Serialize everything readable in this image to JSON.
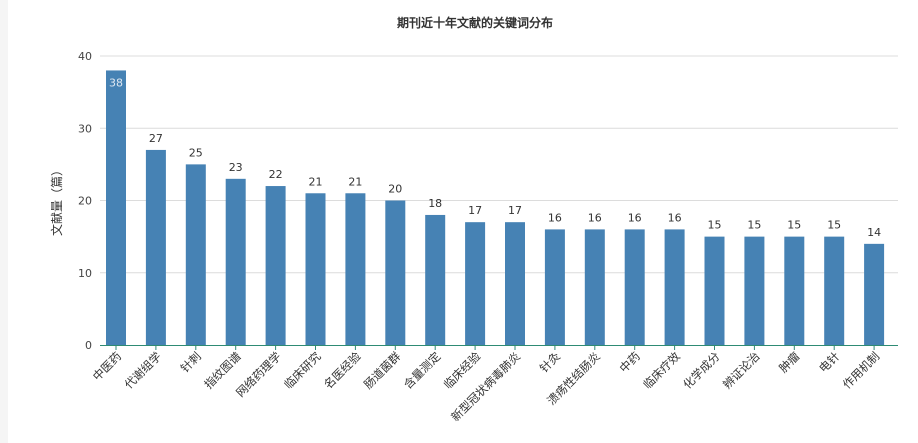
{
  "chart_data": {
    "type": "bar",
    "title": "期刊近十年文献的关键词分布",
    "xlabel": "",
    "ylabel": "文献量（篇）",
    "ylim": [
      0,
      40
    ],
    "yticks": [
      0,
      10,
      20,
      30,
      40
    ],
    "grid": true,
    "bar_color": "#4682b4",
    "categories": [
      "中医药",
      "代谢组学",
      "针刺",
      "指纹图谱",
      "网络药理学",
      "临床研究",
      "名医经验",
      "肠道菌群",
      "含量测定",
      "临床经验",
      "新型冠状病毒肺炎",
      "针灸",
      "溃疡性结肠炎",
      "中药",
      "临床疗效",
      "化学成分",
      "辨证论治",
      "肿瘤",
      "电针",
      "作用机制"
    ],
    "values": [
      38,
      27,
      25,
      23,
      22,
      21,
      21,
      20,
      18,
      17,
      17,
      16,
      16,
      16,
      16,
      15,
      15,
      15,
      15,
      14
    ]
  }
}
